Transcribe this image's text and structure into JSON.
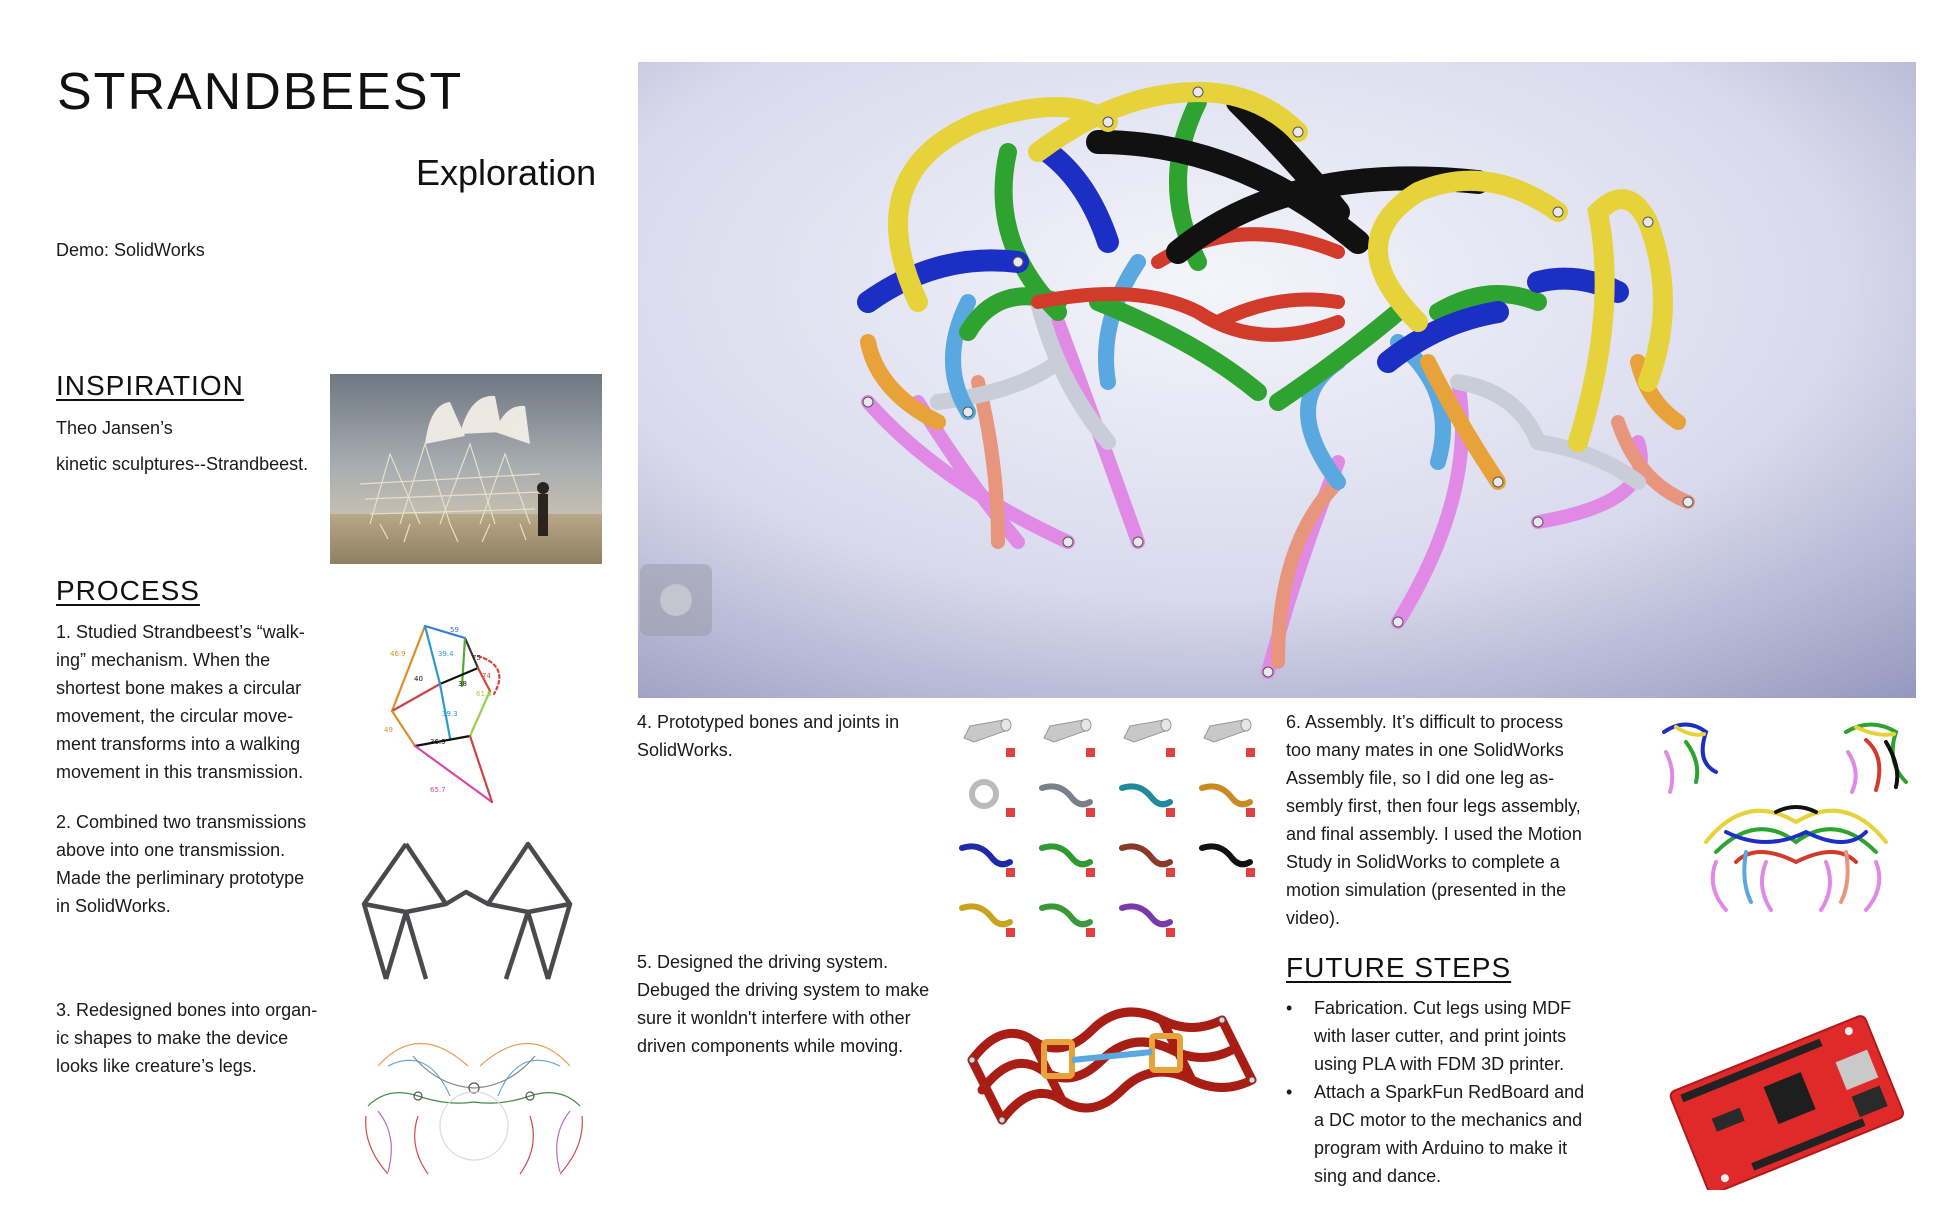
{
  "header": {
    "title": "STRANDBEEST",
    "subtitle": "Exploration",
    "demo": "Demo: SolidWorks"
  },
  "inspiration": {
    "heading": "INSPIRATION",
    "line1": "Theo Jansen’s",
    "line2": "kinetic sculptures--Strandbeest."
  },
  "process": {
    "heading": "PROCESS",
    "step1": [
      "1. Studied Strandbeest’s “walk-",
      "ing” mechanism. When the",
      "shortest bone makes a circular",
      "movement, the circular move-",
      "ment transforms into a walking",
      "movement in this transmission."
    ],
    "step2": [
      "2. Combined two transmissions",
      "above into one transmission.",
      "Made the perliminary prototype",
      "in SolidWorks."
    ],
    "step3": [
      "3. Redesigned bones into organ-",
      "ic shapes to make the device",
      "looks like creature’s legs."
    ],
    "step4": [
      "4. Prototyped bones and joints in",
      "SolidWorks."
    ],
    "step5": [
      "5. Designed the driving system.",
      "Debuged the driving system to make",
      "sure it wonldn't interfere with other",
      "driven components while moving."
    ],
    "step6": [
      "6. Assembly. It’s difficult to process",
      "too many mates in one SolidWorks",
      "Assembly file, so I did one leg as-",
      "sembly first, then four legs assembly,",
      "and final assembly. I used the Motion",
      "Study in SolidWorks to complete a",
      "motion simulation (presented in the",
      "video)."
    ]
  },
  "diagram_labels": [
    "59",
    "46.9",
    "39.4",
    "75",
    "74",
    "61.9",
    "38",
    "40",
    "39.3",
    "36.9",
    "49",
    "65.7"
  ],
  "future": {
    "heading": "FUTURE STEPS",
    "bullet1": [
      "Fabrication. Cut legs using MDF",
      "with laser cutter, and print joints",
      "using PLA with FDM 3D printer."
    ],
    "bullet2": [
      "Attach a SparkFun RedBoard and",
      "a DC motor to the mechanics and",
      "program with Arduino to make it",
      "sing and dance."
    ]
  },
  "parts": [
    {
      "shape": "pin",
      "color": "#c8c8c8"
    },
    {
      "shape": "pin",
      "color": "#c8c8c8"
    },
    {
      "shape": "pin",
      "color": "#c8c8c8"
    },
    {
      "shape": "pin",
      "color": "#c8c8c8"
    },
    {
      "shape": "ring",
      "color": "#bbbbbb"
    },
    {
      "shape": "bone",
      "color": "#7a7f8c"
    },
    {
      "shape": "bone",
      "color": "#1f8a9a"
    },
    {
      "shape": "bone",
      "color": "#c98a22"
    },
    {
      "shape": "bone",
      "color": "#1f2aa8"
    },
    {
      "shape": "bone",
      "color": "#2f9a2f"
    },
    {
      "shape": "bone",
      "color": "#8a3a2a"
    },
    {
      "shape": "bone",
      "color": "#111111"
    },
    {
      "shape": "bone",
      "color": "#c9a21f"
    },
    {
      "shape": "bone",
      "color": "#3a9a3a"
    },
    {
      "shape": "bone",
      "color": "#7a3aa8"
    }
  ],
  "colors": {
    "yellow": "#e6d23a",
    "green": "#2fa32f",
    "blue": "#1c2fc4",
    "black": "#111111",
    "red": "#d23a2a",
    "orange": "#e8a23a",
    "lightblue": "#5aa8e0",
    "pink": "#e08ae6",
    "salmon": "#e8957e",
    "gray": "#c8cdd8",
    "darkred": "#a81e14"
  }
}
